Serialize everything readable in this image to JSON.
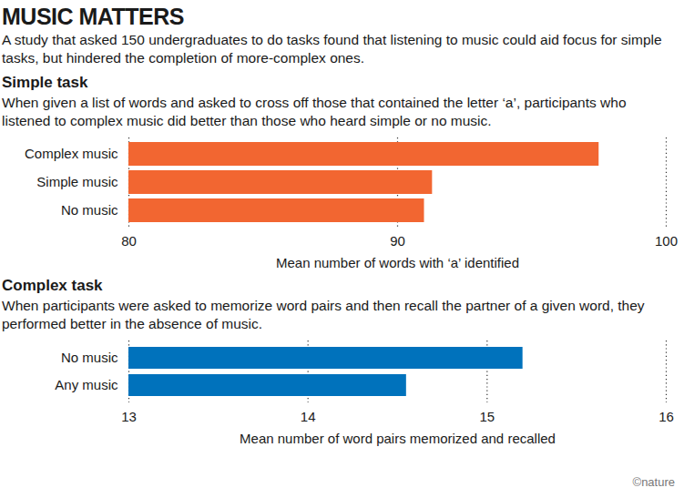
{
  "title": "MUSIC MATTERS",
  "subtitle": "A study that asked 150 undergraduates to do tasks found that listening to music could aid focus for simple tasks, but hindered the completion of more-complex ones.",
  "credit": "©nature",
  "chart_data": [
    {
      "type": "bar",
      "orientation": "horizontal",
      "title": "Simple task",
      "subtitle": "When given a list of words and asked to cross off those that contained the letter ‘a’, participants who listened to complex music did better than those who heard simple or no music.",
      "categories": [
        "Complex music",
        "Simple music",
        "No music"
      ],
      "values": [
        97.5,
        91.3,
        91.0
      ],
      "color": "#f26631",
      "xlim": [
        80,
        100
      ],
      "xticks": [
        80,
        90,
        100
      ],
      "x_label": "Mean number of words with ‘a’ identified",
      "grid": true
    },
    {
      "type": "bar",
      "orientation": "horizontal",
      "title": "Complex task",
      "subtitle": "When participants were asked to memorize word pairs and then recall the partner of a given word, they performed better in the absence of music.",
      "categories": [
        "No music",
        "Any music"
      ],
      "values": [
        15.2,
        14.55
      ],
      "color": "#0072bc",
      "xlim": [
        13,
        16
      ],
      "xticks": [
        13,
        14,
        15,
        16
      ],
      "x_label": "Mean number of word pairs memorized and recalled",
      "grid": true
    }
  ]
}
